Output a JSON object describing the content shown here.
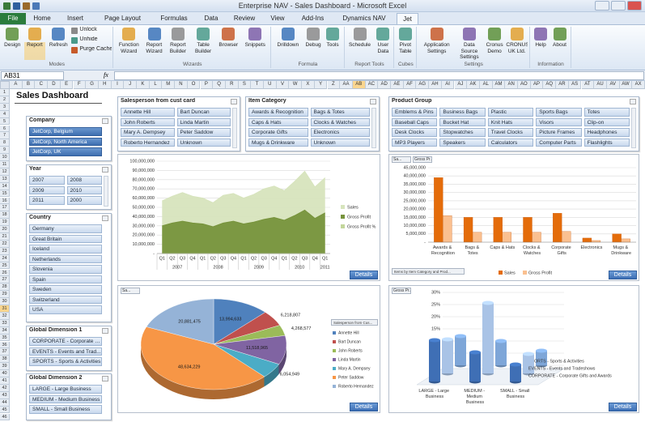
{
  "window": {
    "title": "Enterprise NAV - Sales Dashboard - Microsoft Excel"
  },
  "tabs": [
    "File",
    "Home",
    "Insert",
    "Page Layout",
    "Formulas",
    "Data",
    "Review",
    "View",
    "Add-Ins",
    "Dynamics NAV",
    "Jet"
  ],
  "ribbon": {
    "groups": [
      {
        "label": "Modes",
        "buttons": [
          "Design",
          "Report",
          "Refresh",
          "Unlock",
          "Unhide",
          "Purge Cache"
        ]
      },
      {
        "label": "Wizards",
        "buttons": [
          "Function Wizard",
          "Report Wizard",
          "Report Builder",
          "Table Builder",
          "Browser",
          "Snippets"
        ]
      },
      {
        "label": "Formula",
        "buttons": [
          "Drilldown",
          "Debug",
          "Tools"
        ]
      },
      {
        "label": "Report Tools",
        "buttons": [
          "Schedule",
          "User Data"
        ]
      },
      {
        "label": "Cubes",
        "buttons": [
          "Pivot Table"
        ]
      },
      {
        "label": "Settings",
        "buttons": [
          "Application Settings",
          "Data Source Settings",
          "Cronus Demo",
          "CRONUS UK Ltd."
        ]
      },
      {
        "label": "Information",
        "buttons": [
          "Help",
          "About"
        ]
      }
    ]
  },
  "formula_bar": {
    "name_box": "AB31",
    "function_label": "fx"
  },
  "columns": [
    "A",
    "B",
    "C",
    "D",
    "E",
    "F",
    "G",
    "H",
    "I",
    "J",
    "K",
    "L",
    "M",
    "N",
    "O",
    "P",
    "Q",
    "R",
    "S",
    "T",
    "U",
    "V",
    "W",
    "X",
    "Y",
    "Z",
    "AA",
    "AB",
    "AC",
    "AD",
    "AE",
    "AF",
    "AG",
    "AH",
    "AI",
    "AJ",
    "AK",
    "AL",
    "AM",
    "AN",
    "AO",
    "AP",
    "AQ",
    "AR",
    "AS",
    "AT",
    "AU",
    "AV",
    "AW",
    "AX"
  ],
  "rows": [
    1,
    2,
    3,
    4,
    5,
    6,
    7,
    8,
    9,
    10,
    11,
    12,
    13,
    14,
    15,
    16,
    17,
    18,
    19,
    20,
    21,
    22,
    23,
    24,
    25,
    26,
    27,
    28,
    29,
    30,
    31,
    32,
    33,
    34,
    35,
    36,
    37,
    38,
    39,
    40,
    41,
    42,
    43,
    44,
    45,
    46
  ],
  "sheet_title": "Sales Dashboard",
  "slicers": [
    {
      "title": "Company",
      "selected": true,
      "items": [
        "JetCorp, Belgium",
        "JetCorp, North America",
        "JetCorp, UK"
      ]
    },
    {
      "title": "Year",
      "items": [
        "2007",
        "2008",
        "2009",
        "2010",
        "2011",
        "2000"
      ]
    },
    {
      "title": "Country",
      "items": [
        "Germany",
        "Great Britain",
        "Iceland",
        "Netherlands",
        "Slovenia",
        "Spain",
        "Sweden",
        "Switzerland",
        "USA"
      ]
    },
    {
      "title": "Global Dimension 1",
      "items": [
        "CORPORATE - Corporate G...",
        "EVENTS - Events and Trad...",
        "SPORTS - Sports & Activities"
      ]
    },
    {
      "title": "Global Dimension 2",
      "items": [
        "LARGE - Large Business",
        "MEDIUM - Medium Business",
        "SMALL - Small Business"
      ]
    },
    {
      "title": "Salesperson from cust card",
      "items": [
        "Annette Hill",
        "Bart Duncan",
        "John Roberts",
        "Linda Martin",
        "Mary A. Dempsey",
        "Peter Saddow",
        "Roberto Hernandez",
        "Unknown"
      ]
    },
    {
      "title": "Item Category",
      "items": [
        "Awards & Recognition",
        "Bags & Totes",
        "Caps & Hats",
        "Clocks & Watches",
        "Corporate Gifts",
        "Electronics",
        "Mugs & Drinkware",
        "Unknown"
      ]
    },
    {
      "title": "Product Group",
      "items": [
        "Emblems & Pins",
        "Business Bags",
        "Plastic",
        "Sports Bags",
        "Totes",
        "Baseball Caps",
        "Bucket Hat",
        "Knit Hats",
        "Visors",
        "Clip-on",
        "Desk Clocks",
        "Stopwatches",
        "Travel Clocks",
        "Picture Frames",
        "Headphones",
        "MP3 Players",
        "Speakers",
        "Calculators",
        "Computer Parts",
        "Flashlights"
      ]
    }
  ],
  "charts": [
    {
      "type": "area",
      "button": "Details",
      "categories": [
        "Q1",
        "Q2",
        "Q3",
        "Q4",
        "Q1",
        "Q2",
        "Q3",
        "Q4",
        "Q1",
        "Q2",
        "Q3",
        "Q4",
        "Q1",
        "Q2",
        "Q3",
        "Q4",
        "Q1"
      ],
      "x_years": [
        "2007",
        "2007",
        "2007",
        "2007",
        "2008",
        "2008",
        "2008",
        "2008",
        "2009",
        "2009",
        "2009",
        "2009",
        "2010",
        "2010",
        "2010",
        "2010",
        "2011"
      ],
      "series": [
        {
          "name": "Sales",
          "color": "#d7e4bd",
          "values": [
            57000000,
            62000000,
            66000000,
            62000000,
            60000000,
            55000000,
            63000000,
            65000000,
            60000000,
            64000000,
            70000000,
            73000000,
            68000000,
            78000000,
            89000000,
            72000000,
            82000000
          ]
        },
        {
          "name": "Gross Profit",
          "color": "#77933c",
          "values": [
            30000000,
            33000000,
            35000000,
            33000000,
            32000000,
            29000000,
            33000000,
            35000000,
            32000000,
            34000000,
            37000000,
            39000000,
            36000000,
            41000000,
            47000000,
            38000000,
            44000000
          ]
        },
        {
          "name": "Gross Profit %",
          "color": "#c3d69b",
          "values": [
            0.52,
            0.53,
            0.53,
            0.53,
            0.53,
            0.53,
            0.52,
            0.54,
            0.53,
            0.53,
            0.53,
            0.53,
            0.53,
            0.53,
            0.53,
            0.53,
            0.54
          ]
        }
      ],
      "ylim": [
        0,
        100000000
      ],
      "yticks": [
        {
          "value": 0,
          "label": "-"
        },
        {
          "value": 10000000,
          "label": "10,000,000"
        },
        {
          "value": 20000000,
          "label": "20,000,000"
        },
        {
          "value": 30000000,
          "label": "30,000,000"
        },
        {
          "value": 40000000,
          "label": "40,000,000"
        },
        {
          "value": 50000000,
          "label": "50,000,000"
        },
        {
          "value": 60000000,
          "label": "60,000,000"
        },
        {
          "value": 70000000,
          "label": "70,000,000"
        },
        {
          "value": 80000000,
          "label": "80,000,000"
        },
        {
          "value": 90000000,
          "label": "90,000,000"
        },
        {
          "value": 100000000,
          "label": "100,000,000"
        }
      ],
      "grid": true
    },
    {
      "type": "bar",
      "button": "Details",
      "field_buttons": [
        "Sa...",
        "Gross Pr..."
      ],
      "filter_label": "Items by Item Category and Prod...",
      "categories": [
        "Awards & Recognition",
        "Bags & Totes",
        "Caps & Hats",
        "Clocks & Watches",
        "Corporate Gifts",
        "Electronics",
        "Mugs & Drinkware"
      ],
      "series": [
        {
          "name": "Sales",
          "color": "#e46c0a",
          "values": [
            39000000,
            15000000,
            15000000,
            15000000,
            17500000,
            2500000,
            5000000
          ]
        },
        {
          "name": "Gross Profit",
          "color": "#fac090",
          "values": [
            16000000,
            6000000,
            6000000,
            6000000,
            6500000,
            1000000,
            2000000
          ]
        }
      ],
      "ylim": [
        0,
        45000000
      ],
      "yticks": [
        {
          "value": 0,
          "label": "-"
        },
        {
          "value": 5000000,
          "label": "5,000,000"
        },
        {
          "value": 10000000,
          "label": "10,000,000"
        },
        {
          "value": 15000000,
          "label": "15,000,000"
        },
        {
          "value": 20000000,
          "label": "20,000,000"
        },
        {
          "value": 25000000,
          "label": "25,000,000"
        },
        {
          "value": 30000000,
          "label": "30,000,000"
        },
        {
          "value": 35000000,
          "label": "35,000,000"
        },
        {
          "value": 40000000,
          "label": "40,000,000"
        },
        {
          "value": 45000000,
          "label": "45,000,000"
        }
      ],
      "grid": true
    },
    {
      "type": "pie",
      "button": "Details",
      "field_buttons": [
        "Sa..."
      ],
      "legend_title": "Salesperson from Cus...",
      "categories": [
        "Annette Hill",
        "Bart Duncan",
        "John Roberts",
        "Linda Martin",
        "Mary A. Dempsey",
        "Peter Saddow",
        "Roberto Hernandez"
      ],
      "colors": [
        "#4f81bd",
        "#c0504d",
        "#9bbb59",
        "#8064a2",
        "#4bacc6",
        "#f79646",
        "#95b3d7"
      ],
      "values": [
        13994633,
        6218807,
        4268577,
        11518965,
        6054949,
        48634229,
        20881475
      ],
      "value_labels": [
        "13,994,633",
        "6,218,807",
        "4,268,577",
        "11,518,965",
        "6,054,949",
        "48,634,229",
        "20,881,475"
      ]
    },
    {
      "type": "bar3d",
      "button": "Details",
      "field_buttons": [
        "Gross Pr..."
      ],
      "categories": [
        "LARGE - Large Business",
        "MEDIUM - Medium Business",
        "SMALL - Small Business"
      ],
      "series": [
        {
          "name": "SPORTS - Sports & Activities",
          "color": "#7ea6d8",
          "values": [
            12,
            10,
            6
          ]
        },
        {
          "name": "EVENTS - Events and Tradeshows",
          "color": "#a9c3e6",
          "values": [
            14,
            29,
            8
          ]
        },
        {
          "name": "CORPORATE - Corporate Gifts and Awards",
          "color": "#3f6fb5",
          "values": [
            17,
            12,
            7
          ]
        }
      ],
      "ylim": [
        0,
        30
      ],
      "yticks": [
        {
          "value": 0,
          "label": "0%"
        },
        {
          "value": 5,
          "label": "5%"
        },
        {
          "value": 10,
          "label": "10%"
        },
        {
          "value": 15,
          "label": "15%"
        },
        {
          "value": 20,
          "label": "20%"
        },
        {
          "value": 25,
          "label": "25%"
        },
        {
          "value": 30,
          "label": "30%"
        }
      ],
      "grid": true
    }
  ]
}
